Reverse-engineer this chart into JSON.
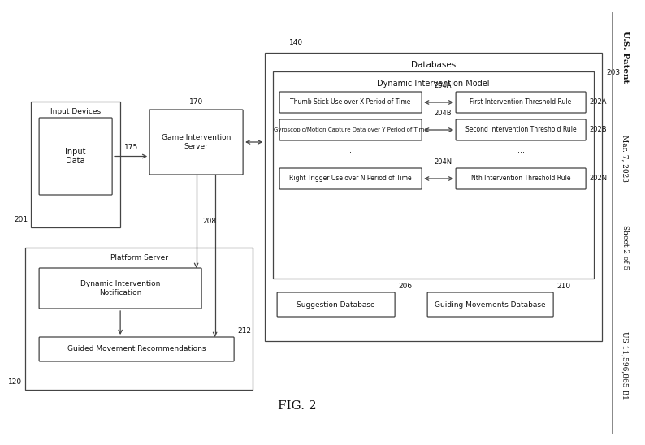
{
  "bg_color": "#ffffff",
  "box_color": "#ffffff",
  "box_edge": "#444444",
  "text_color": "#111111",
  "fig_title": "FIG. 2",
  "right_text_top": "U.S. Patent",
  "right_text_mid": "Mar. 7, 2023",
  "right_text_sheet": "Sheet 2 of 5",
  "right_text_bot": "US 11,596,865 B1",
  "labels": {
    "input_devices": "Input Devices",
    "input_data": "Input\nData",
    "game_server": "Game Intervention\nServer",
    "platform_server_label": "Platform Server",
    "dyn_notif": "Dynamic Intervention\nNotification",
    "guided_rec": "Guided Movement Recommendations",
    "databases_label": "Databases",
    "dim_label": "Dynamic Intervention Model",
    "thumb_stick": "Thumb Stick Use over X Period of Time",
    "gyro": "Gyroscopic/Motion Capture Data over Y Period of Time",
    "right_trigger": "Right Trigger Use over N Period of Time",
    "first_rule": "First Intervention Threshold Rule",
    "second_rule": "Second Intervention Threshold Rule",
    "nth_rule": "Nth Intervention Threshold Rule",
    "suggestion_db": "Suggestion Database",
    "guiding_db": "Guiding Movements Database"
  },
  "numbers": {
    "n201": "201",
    "n170": "170",
    "n175": "175",
    "n140": "140",
    "n203": "203",
    "n204A": "204A",
    "n204B": "204B",
    "n204N": "204N",
    "n202A": "202A",
    "n202B": "202B",
    "n202N": "202N",
    "n208": "208",
    "n206": "206",
    "n210": "210",
    "n212": "212",
    "n120": "120"
  }
}
